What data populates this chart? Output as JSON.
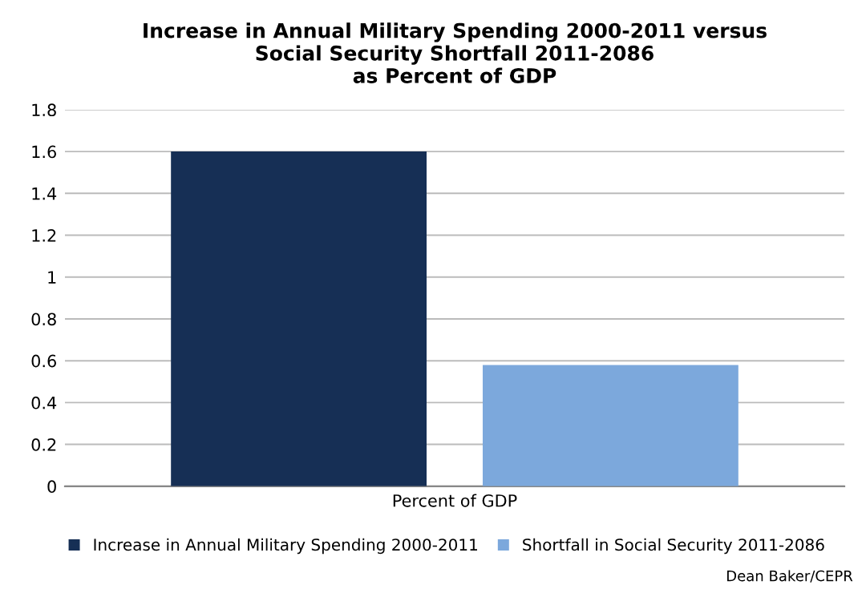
{
  "chart_data": {
    "type": "bar",
    "title": "Increase in Annual Military Spending 2000-2011 versus\nSocial Security Shortfall 2011-2086\nas Percent of GDP",
    "categories": [
      "Percent of GDP"
    ],
    "series": [
      {
        "name": "Increase in Annual Military Spending 2000-2011",
        "color": "#162f55",
        "values": [
          1.6
        ]
      },
      {
        "name": "Shortfall in Social Security 2011-2086",
        "color": "#7ca8dc",
        "values": [
          0.58
        ]
      }
    ],
    "ylim": [
      0,
      1.8
    ],
    "yticks": [
      0,
      0.2,
      0.4,
      0.6,
      0.8,
      1,
      1.2,
      1.4,
      1.6,
      1.8
    ],
    "grid": "y",
    "legend": "bottom",
    "annotations": [
      "Dean Baker/CEPR"
    ]
  }
}
